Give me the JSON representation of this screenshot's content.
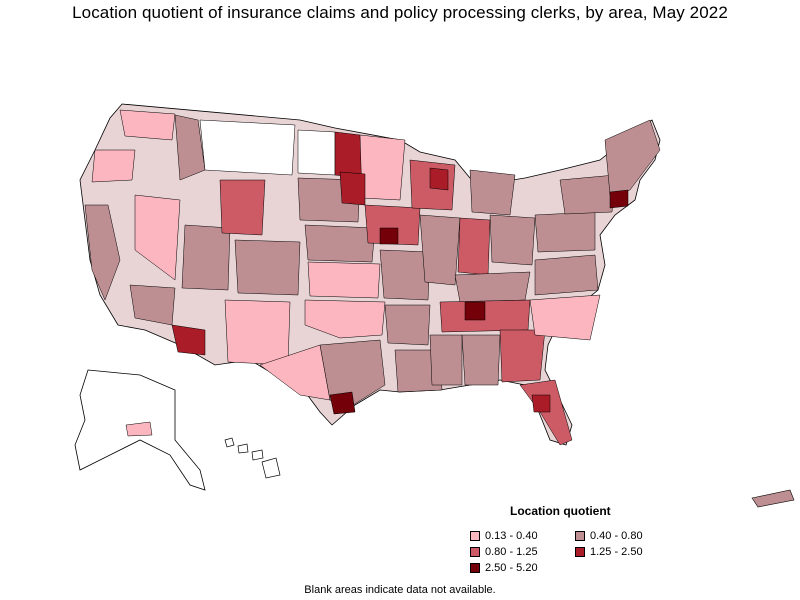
{
  "title": "Location quotient of insurance claims and policy processing clerks, by area, May 2022",
  "legend": {
    "title": "Location quotient",
    "items": [
      {
        "label": "0.13 - 0.40",
        "color": "#fbb6c0"
      },
      {
        "label": "0.40 - 0.80",
        "color": "#bd8f92"
      },
      {
        "label": "0.80 - 1.25",
        "color": "#cd5b65"
      },
      {
        "label": "1.25 - 2.50",
        "color": "#aa1c27"
      },
      {
        "label": "2.50 - 5.20",
        "color": "#740009"
      }
    ]
  },
  "footnote": "Blank areas indicate data not available.",
  "colors": {
    "no_data": "#ffffff",
    "border": "#000000"
  }
}
